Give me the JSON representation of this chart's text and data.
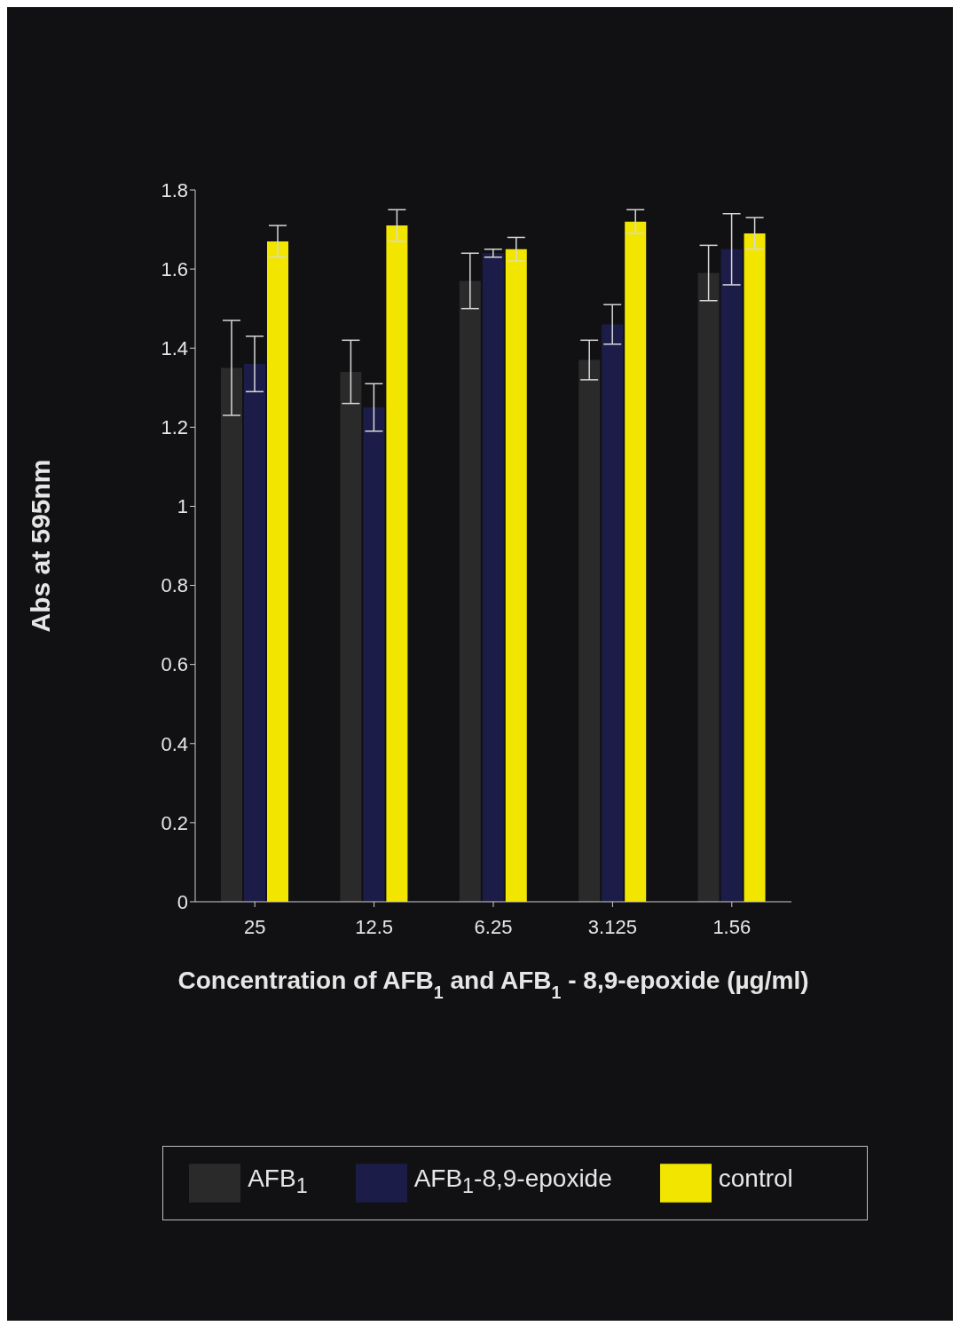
{
  "chart_data": {
    "type": "bar",
    "xlabel": "Concentration of AFB$_{1}$ and AFB$_{1}$ - 8,9-epoxide (µg/ml)",
    "ylabel": "Abs at 595nm",
    "categories": [
      "25",
      "12.5",
      "6.25",
      "3.125",
      "1.56"
    ],
    "series": [
      {
        "name": "AFB$_{1}$",
        "color": "#2a2a2a",
        "values": [
          1.35,
          1.34,
          1.57,
          1.37,
          1.59
        ],
        "errors": [
          0.12,
          0.08,
          0.07,
          0.05,
          0.07
        ]
      },
      {
        "name": "AFB$_{1}$-8,9-epoxide",
        "color": "#1c1c48",
        "values": [
          1.36,
          1.25,
          1.64,
          1.46,
          1.65
        ],
        "errors": [
          0.07,
          0.06,
          0.01,
          0.05,
          0.09
        ]
      },
      {
        "name": "control",
        "color": "#f2e600",
        "values": [
          1.67,
          1.71,
          1.65,
          1.72,
          1.69
        ],
        "errors": [
          0.04,
          0.04,
          0.03,
          0.03,
          0.04
        ]
      }
    ],
    "ylim": [
      0,
      1.8
    ],
    "yticks": [
      0,
      0.2,
      0.4,
      0.6,
      0.8,
      1,
      1.2,
      1.4,
      1.6,
      1.8
    ],
    "legend": "bottom"
  }
}
